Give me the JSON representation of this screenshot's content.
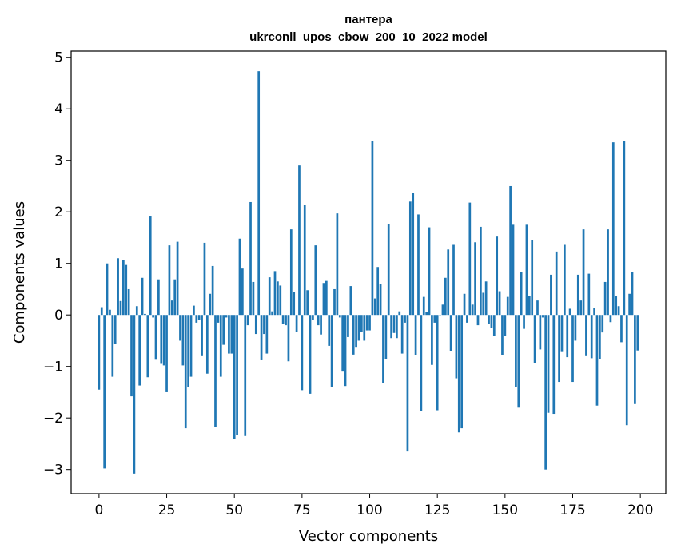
{
  "chart_data": {
    "type": "bar",
    "title": [
      "пантера",
      "ukrconll_upos_cbow_200_10_2022 model"
    ],
    "xlabel": "Vector components",
    "ylabel": "Components values",
    "xlim": [
      -10.3,
      209.4
    ],
    "ylim": [
      -3.47,
      5.12
    ],
    "grid": false,
    "color": "#1f77b4",
    "xticks": [
      0,
      25,
      50,
      75,
      100,
      125,
      150,
      175,
      200
    ],
    "xtick_labels": [
      "0",
      "25",
      "50",
      "75",
      "100",
      "125",
      "150",
      "175",
      "200"
    ],
    "yticks": [
      -3,
      -2,
      -1,
      0,
      1,
      2,
      3,
      4,
      5
    ],
    "ytick_labels": [
      "−3",
      "−2",
      "−1",
      "0",
      "1",
      "2",
      "3",
      "4",
      "5"
    ],
    "values": [
      -1.45,
      0.15,
      -2.98,
      1.0,
      0.1,
      -1.2,
      -0.57,
      1.1,
      0.27,
      1.07,
      0.97,
      0.5,
      -1.58,
      -3.08,
      0.17,
      -1.37,
      0.72,
      0.02,
      -1.21,
      1.91,
      -0.05,
      -0.87,
      0.69,
      -0.95,
      -0.98,
      -1.5,
      1.35,
      0.28,
      0.69,
      1.42,
      -0.5,
      -0.98,
      -2.2,
      -1.4,
      -1.2,
      0.18,
      -0.15,
      -0.1,
      -0.8,
      1.4,
      -1.14,
      0.41,
      0.95,
      -2.18,
      -0.15,
      -1.2,
      -0.58,
      -0.05,
      -0.75,
      -0.75,
      -2.4,
      -2.33,
      1.48,
      0.9,
      -2.35,
      -0.2,
      2.19,
      0.64,
      -0.37,
      4.73,
      -0.88,
      -0.37,
      -0.75,
      0.73,
      0.07,
      0.85,
      0.65,
      0.57,
      -0.17,
      -0.2,
      -0.9,
      1.66,
      0.45,
      -0.33,
      2.9,
      -1.46,
      2.13,
      0.48,
      -1.53,
      -0.1,
      1.35,
      -0.2,
      -0.38,
      0.62,
      0.66,
      -0.6,
      -1.4,
      0.5,
      1.97,
      -0.05,
      -1.1,
      -1.38,
      -0.43,
      0.56,
      -0.77,
      -0.62,
      -0.5,
      -0.33,
      -0.5,
      -0.3,
      -0.3,
      3.38,
      0.32,
      0.93,
      0.6,
      -1.32,
      -0.85,
      1.77,
      -0.45,
      -0.35,
      -0.45,
      0.07,
      -0.75,
      -0.15,
      -2.65,
      2.2,
      2.36,
      -0.78,
      1.95,
      -1.87,
      0.35,
      0.05,
      1.7,
      -0.97,
      -0.15,
      -1.85,
      0.0,
      0.2,
      0.72,
      1.27,
      -0.7,
      1.36,
      -1.23,
      -2.28,
      -2.2,
      0.41,
      -0.15,
      2.18,
      0.2,
      1.41,
      -0.2,
      1.71,
      0.43,
      0.65,
      -0.17,
      -0.25,
      -0.4,
      1.52,
      0.46,
      -0.78,
      -0.4,
      0.35,
      2.5,
      1.75,
      -1.4,
      -1.8,
      0.83,
      -0.27,
      1.75,
      0.37,
      1.45,
      -0.93,
      0.28,
      -0.67,
      -0.05,
      -3.0,
      -1.9,
      0.78,
      -1.92,
      1.23,
      -1.3,
      -0.72,
      1.36,
      -0.82,
      0.12,
      -1.3,
      -0.5,
      0.78,
      0.28,
      1.66,
      -0.8,
      0.8,
      -0.84,
      0.14,
      -1.76,
      -0.86,
      -0.34,
      0.64,
      1.66,
      -0.14,
      3.35,
      0.36,
      0.17,
      -0.53,
      3.38,
      -2.14,
      0.41,
      0.83,
      -1.73,
      -0.69
    ]
  }
}
